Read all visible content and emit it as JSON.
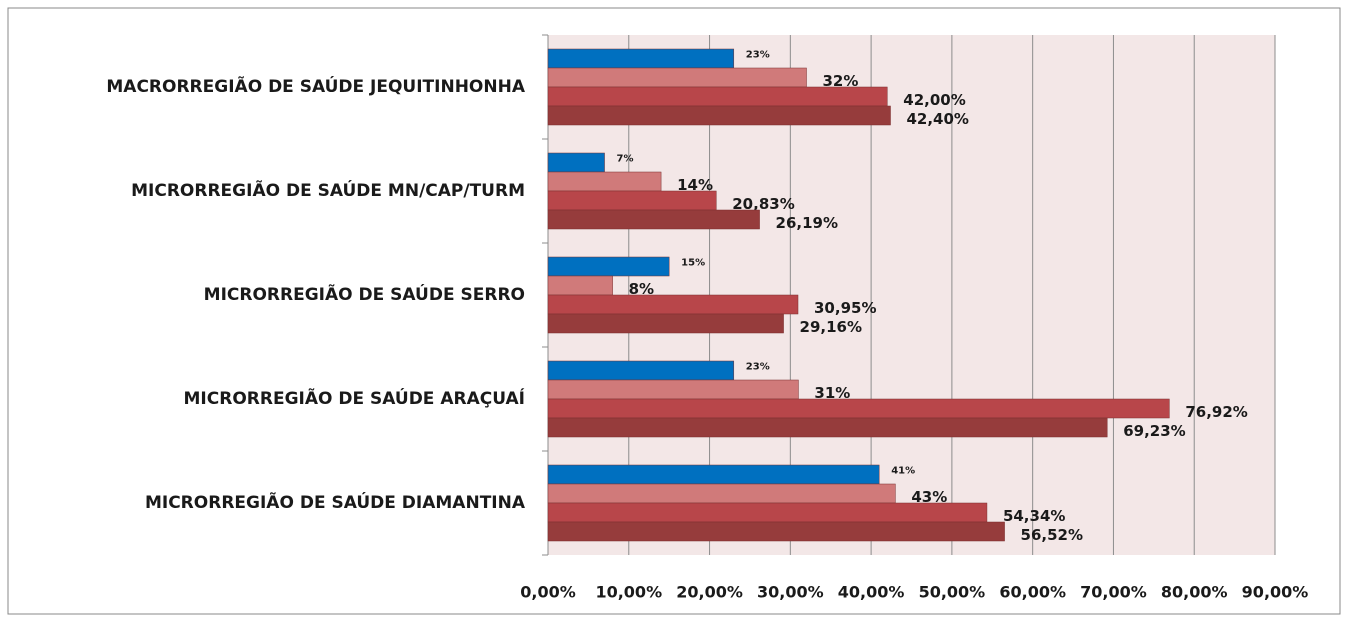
{
  "chart_data": {
    "type": "hbar",
    "categories": [
      "MACRORREGIÃO DE SAÚDE JEQUITINHONHA",
      "MICRORREGIÃO DE SAÚDE MN/CAP/TURM",
      "MICRORREGIÃO DE SAÚDE SERRO",
      "MICRORREGIÃO DE SAÚDE ARAÇUAÍ",
      "MICRORREGIÃO DE SAÚDE DIAMANTINA"
    ],
    "series": [
      {
        "color": "#0070c0",
        "values": [
          23,
          7,
          15,
          23,
          41
        ],
        "value_labels": [
          "23%",
          "7%",
          "15%",
          "23%",
          "41%"
        ]
      },
      {
        "color": "#d07a7a",
        "values": [
          32,
          14,
          8,
          31,
          43
        ],
        "value_labels": [
          "32%",
          "14%",
          "8%",
          "31%",
          "43%"
        ]
      },
      {
        "color": "#b8464a",
        "values": [
          42.0,
          20.83,
          30.95,
          76.92,
          54.34
        ],
        "value_labels": [
          "42,00%",
          "20,83%",
          "30,95%",
          "76,92%",
          "54,34%"
        ]
      },
      {
        "color": "#963c3c",
        "values": [
          42.4,
          26.19,
          29.16,
          69.23,
          56.52
        ],
        "value_labels": [
          "42,40%",
          "26,19%",
          "29,16%",
          "69,23%",
          "56,52%"
        ]
      }
    ],
    "xlim": [
      0,
      90
    ],
    "xticks": [
      {
        "value": 0,
        "label": "0,00%"
      },
      {
        "value": 10,
        "label": "10,00%"
      },
      {
        "value": 20,
        "label": "20,00%"
      },
      {
        "value": 30,
        "label": "30,00%"
      },
      {
        "value": 40,
        "label": "40,00%"
      },
      {
        "value": 50,
        "label": "50,00%"
      },
      {
        "value": 60,
        "label": "60,00%"
      },
      {
        "value": 70,
        "label": "70,00%"
      },
      {
        "value": 80,
        "label": "80,00%"
      },
      {
        "value": 90,
        "label": "90,00%"
      }
    ],
    "grid": true
  }
}
